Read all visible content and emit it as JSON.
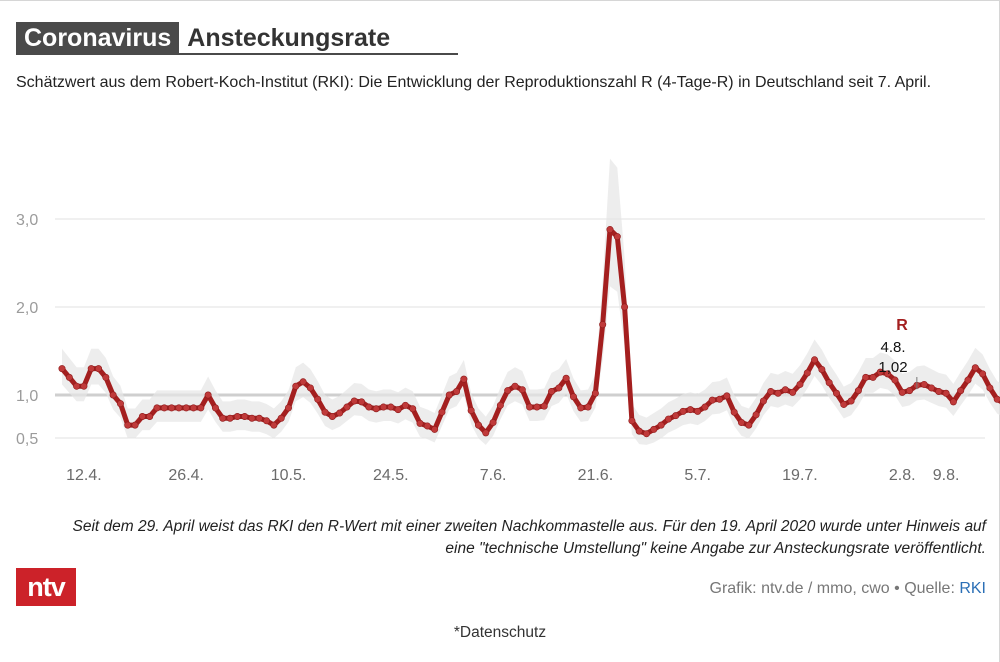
{
  "header": {
    "title_dark": "Coronavirus",
    "title_light": "Ansteckungsrate",
    "subtitle": "Schätzwert aus dem Robert-Koch-Institut (RKI): Die Entwicklung der Reproduktionszahl R (4-Tage-R) in Deutschland seit 7. April."
  },
  "chart_data": {
    "type": "line",
    "title": "Coronavirus Ansteckungsrate",
    "xlabel": "",
    "ylabel": "R",
    "series_name": "R",
    "line_color": "#a41f1f",
    "band_color": "#e6e6e6",
    "grid_color": "#e2e2e2",
    "reference_line": 1.0,
    "x_start_day": 9,
    "x_end_day": 133,
    "ylim": [
      0.5,
      3.0
    ],
    "yticks": [
      {
        "value": 0.5,
        "label": "0,5"
      },
      {
        "value": 1.0,
        "label": "1,0"
      },
      {
        "value": 2.0,
        "label": "2,0"
      },
      {
        "value": 3.0,
        "label": "3,0"
      }
    ],
    "xticks": [
      {
        "day": 12,
        "label": "12.4."
      },
      {
        "day": 26,
        "label": "26.4."
      },
      {
        "day": 40,
        "label": "10.5."
      },
      {
        "day": 54,
        "label": "24.5."
      },
      {
        "day": 68,
        "label": "7.6."
      },
      {
        "day": 82,
        "label": "21.6."
      },
      {
        "day": 96,
        "label": "5.7."
      },
      {
        "day": 110,
        "label": "19.7."
      },
      {
        "day": 124,
        "label": "2.8."
      },
      {
        "day": 130,
        "label": "9.8."
      }
    ],
    "values": [
      1.3,
      1.2,
      1.1,
      1.1,
      1.3,
      1.3,
      1.2,
      1.0,
      0.9,
      0.65,
      0.65,
      0.75,
      0.75,
      0.85,
      0.85,
      0.85,
      0.85,
      0.85,
      0.85,
      0.85,
      1.0,
      0.85,
      0.73,
      0.73,
      0.75,
      0.75,
      0.73,
      0.73,
      0.7,
      0.65,
      0.73,
      0.85,
      1.1,
      1.15,
      1.08,
      0.95,
      0.8,
      0.75,
      0.79,
      0.86,
      0.93,
      0.92,
      0.86,
      0.84,
      0.86,
      0.86,
      0.83,
      0.88,
      0.84,
      0.67,
      0.64,
      0.6,
      0.8,
      1.0,
      1.04,
      1.18,
      0.82,
      0.65,
      0.56,
      0.68,
      0.88,
      1.05,
      1.1,
      1.06,
      0.86,
      0.86,
      0.87,
      1.04,
      1.08,
      1.19,
      0.98,
      0.85,
      0.86,
      1.02,
      1.8,
      2.88,
      2.8,
      2.0,
      0.7,
      0.58,
      0.55,
      0.6,
      0.65,
      0.72,
      0.76,
      0.81,
      0.83,
      0.81,
      0.86,
      0.94,
      0.95,
      0.99,
      0.8,
      0.68,
      0.65,
      0.77,
      0.93,
      1.04,
      1.02,
      1.06,
      1.03,
      1.12,
      1.25,
      1.4,
      1.29,
      1.14,
      1.02,
      0.89,
      0.93,
      1.05,
      1.2,
      1.2,
      1.26,
      1.24,
      1.17,
      1.03,
      1.05,
      1.11,
      1.12,
      1.08,
      1.04,
      1.02,
      0.92,
      1.05,
      1.17,
      1.31,
      1.24,
      1.08,
      0.95,
      0.9,
      0.92
    ],
    "annotation": {
      "series_label": "R",
      "date": "4.8.",
      "value": 1.02,
      "value_label": "1,02",
      "day": 126
    }
  },
  "notes": {
    "footnote": "Seit dem 29. April weist das RKI den R-Wert mit einer zweiten Nachkommastelle aus. Für den 19. April 2020 wurde unter Hinweis auf eine \"technische Umstellung\" keine Angabe zur Ansteckungsrate veröffentlicht."
  },
  "footer": {
    "logo_text": "ntv",
    "credit_text": "Grafik: ntv.de / mmo, cwo • Quelle: ",
    "source_link": "RKI",
    "privacy_link": "*Datenschutz"
  }
}
